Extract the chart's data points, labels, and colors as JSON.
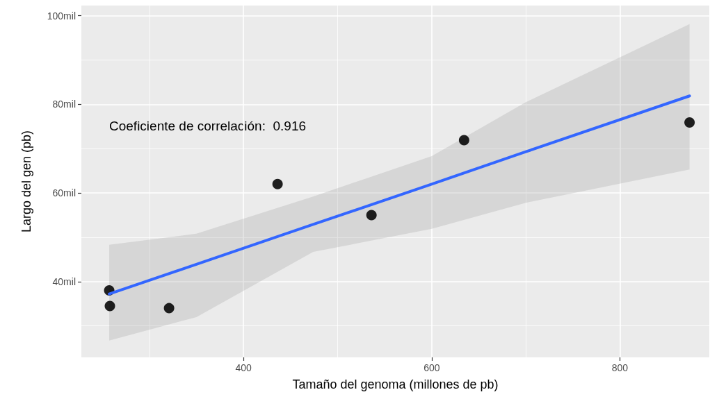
{
  "chart_data": {
    "type": "scatter",
    "xlabel": "Tamaño del genoma (millones de pb)",
    "ylabel": "Largo del gen (pb)",
    "annotations": [
      "Coeficiente de correlación:  0.916"
    ],
    "series": [
      {
        "type": "scatter",
        "marker": "circle",
        "color": "#000000",
        "x": [
          257.3,
          258,
          320.9,
          436.2,
          536,
          634.4,
          874
        ],
        "values": [
          38.0,
          34.5,
          34.0,
          62.0,
          55.0,
          71.9,
          75.9
        ]
      },
      {
        "type": "line",
        "marker": "none",
        "color": "#3366ff",
        "x": [
          257.3,
          350,
          474,
          600,
          700,
          874
        ],
        "values": [
          37.2,
          43.9,
          52.9,
          62.0,
          69.3,
          81.9
        ],
        "lower": [
          26.7,
          32.0,
          46.7,
          51.9,
          57.8,
          65.3
        ],
        "upper": [
          48.3,
          50.8,
          59.2,
          68.3,
          80.5,
          98.1
        ]
      }
    ],
    "xlim": [
      227.7,
      895
    ],
    "ylim": [
      22.9,
      102.3
    ],
    "xticks": [
      {
        "value": 300,
        "label": null
      },
      400,
      {
        "value": 500,
        "label": null
      },
      600,
      {
        "value": 700,
        "label": null
      },
      800
    ],
    "yticks": [
      {
        "value": 30,
        "label": null
      },
      {
        "value": 40,
        "label": "40mil"
      },
      {
        "value": 50,
        "label": null
      },
      {
        "value": 60,
        "label": "60mil"
      },
      {
        "value": 70,
        "label": null
      },
      {
        "value": 80,
        "label": "80mil"
      },
      {
        "value": 90,
        "label": null
      },
      {
        "value": 100,
        "label": "100mil"
      }
    ],
    "grid": true
  }
}
